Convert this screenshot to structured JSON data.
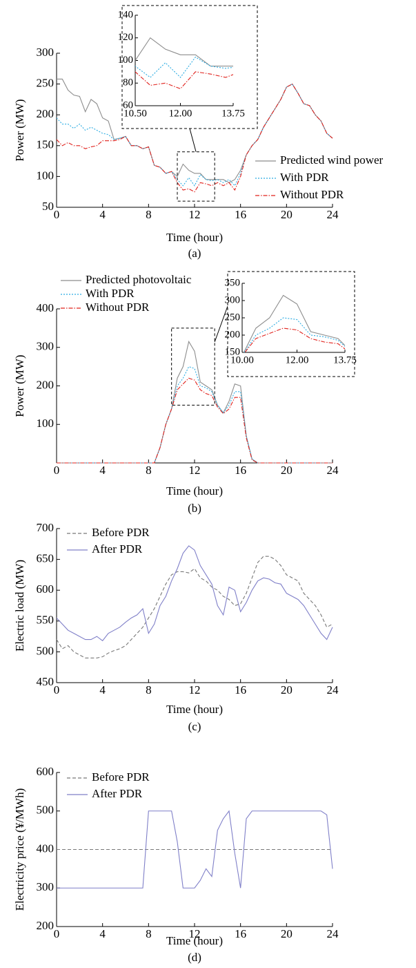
{
  "chart_data": [
    {
      "type": "line",
      "ylabel": "Power (MW)",
      "xlabel": "Time (hour)",
      "caption": "(a)",
      "x": [
        0,
        0.5,
        1,
        1.5,
        2,
        2.5,
        3,
        3.5,
        4,
        4.5,
        5,
        5.5,
        6,
        6.5,
        7,
        7.5,
        8,
        8.5,
        9,
        9.5,
        10,
        10.5,
        11,
        11.5,
        12,
        12.5,
        13,
        13.5,
        14,
        14.5,
        15,
        15.5,
        16,
        16.5,
        17,
        17.5,
        18,
        18.5,
        19,
        19.5,
        20,
        20.5,
        21,
        21.5,
        22,
        22.5,
        23,
        23.5,
        24
      ],
      "xlim": [
        0,
        24
      ],
      "xticks": [
        0,
        4,
        8,
        12,
        16,
        20,
        24
      ],
      "ylim": [
        50,
        300
      ],
      "yticks": [
        50,
        100,
        150,
        200,
        250,
        300
      ],
      "legend": "center right",
      "series": [
        {
          "name": "Predicted wind power",
          "color": "#8c8c8c",
          "linestyle": "solid",
          "values": [
            258,
            258,
            240,
            232,
            230,
            205,
            225,
            218,
            195,
            190,
            160,
            162,
            165,
            150,
            150,
            145,
            148,
            118,
            115,
            105,
            108,
            100,
            120,
            110,
            105,
            105,
            95,
            95,
            95,
            95,
            90,
            95,
            110,
            135,
            150,
            160,
            180,
            195,
            210,
            225,
            245,
            250,
            235,
            218,
            215,
            200,
            190,
            170,
            162
          ]
        },
        {
          "name": "With PDR",
          "color": "#29abe2",
          "linestyle": "dotted",
          "values": [
            195,
            185,
            185,
            178,
            185,
            175,
            180,
            175,
            170,
            168,
            160,
            162,
            165,
            150,
            150,
            145,
            148,
            118,
            115,
            105,
            108,
            95,
            85,
            98,
            85,
            103,
            95,
            93,
            95,
            90,
            95,
            85,
            105,
            135,
            150,
            160,
            180,
            195,
            210,
            225,
            245,
            250,
            235,
            218,
            215,
            200,
            190,
            170,
            162
          ]
        },
        {
          "name": "Without PDR",
          "color": "#e0201b",
          "linestyle": "dashdot",
          "values": [
            160,
            150,
            155,
            150,
            150,
            145,
            148,
            150,
            158,
            158,
            158,
            160,
            165,
            150,
            150,
            145,
            148,
            118,
            115,
            105,
            108,
            90,
            78,
            80,
            75,
            90,
            88,
            85,
            90,
            85,
            90,
            78,
            100,
            135,
            150,
            160,
            180,
            195,
            210,
            225,
            245,
            250,
            235,
            218,
            215,
            200,
            190,
            170,
            162
          ]
        }
      ],
      "inset": {
        "xlim": [
          10.5,
          13.75
        ],
        "ylim": [
          60,
          140
        ],
        "xticks": [
          {
            "value": 10.5,
            "label": "10.50"
          },
          {
            "value": 12,
            "label": "12.00"
          },
          {
            "value": 13.75,
            "label": "13.75"
          }
        ],
        "yticks": [
          60,
          80,
          100,
          120,
          140
        ]
      }
    },
    {
      "type": "line",
      "ylabel": "Power (MW)",
      "xlabel": "Time (hour)",
      "caption": "(b)",
      "x": [
        0,
        0.5,
        1,
        1.5,
        2,
        2.5,
        3,
        3.5,
        4,
        4.5,
        5,
        5.5,
        6,
        6.5,
        7,
        7.5,
        8,
        8.5,
        9,
        9.5,
        10,
        10.5,
        11,
        11.5,
        12,
        12.5,
        13,
        13.5,
        14,
        14.5,
        15,
        15.5,
        16,
        16.5,
        17,
        17.5,
        18,
        18.5,
        19,
        19.5,
        20,
        20.5,
        21,
        21.5,
        22,
        22.5,
        23,
        23.5,
        24
      ],
      "xlim": [
        0,
        24
      ],
      "xticks": [
        0,
        4,
        8,
        12,
        16,
        20,
        24
      ],
      "ylim": [
        0,
        400
      ],
      "yticks": [
        100,
        200,
        300,
        400
      ],
      "legend": "upper left",
      "series": [
        {
          "name": "Predicted photovoltaic",
          "color": "#8c8c8c",
          "linestyle": "solid",
          "values": [
            0,
            0,
            0,
            0,
            0,
            0,
            0,
            0,
            0,
            0,
            0,
            0,
            0,
            0,
            0,
            0,
            0,
            0,
            40,
            100,
            140,
            220,
            250,
            315,
            290,
            210,
            200,
            190,
            150,
            130,
            160,
            205,
            200,
            70,
            10,
            0,
            0,
            0,
            0,
            0,
            0,
            0,
            0,
            0,
            0,
            0,
            0,
            0,
            0
          ]
        },
        {
          "name": "With PDR",
          "color": "#29abe2",
          "linestyle": "dotted",
          "values": [
            0,
            0,
            0,
            0,
            0,
            0,
            0,
            0,
            0,
            0,
            0,
            0,
            0,
            0,
            0,
            0,
            0,
            0,
            40,
            100,
            140,
            200,
            220,
            250,
            245,
            200,
            195,
            185,
            150,
            130,
            150,
            185,
            185,
            70,
            10,
            0,
            0,
            0,
            0,
            0,
            0,
            0,
            0,
            0,
            0,
            0,
            0,
            0,
            0
          ]
        },
        {
          "name": "Without PDR",
          "color": "#e0201b",
          "linestyle": "dashdot",
          "values": [
            0,
            0,
            0,
            0,
            0,
            0,
            0,
            0,
            0,
            0,
            0,
            0,
            0,
            0,
            0,
            0,
            0,
            0,
            40,
            100,
            140,
            190,
            205,
            220,
            215,
            190,
            180,
            175,
            145,
            128,
            140,
            170,
            170,
            65,
            8,
            0,
            0,
            0,
            0,
            0,
            0,
            0,
            0,
            0,
            0,
            0,
            0,
            0,
            0
          ]
        }
      ],
      "inset": {
        "xlim": [
          10,
          13.75
        ],
        "ylim": [
          150,
          350
        ],
        "xticks": [
          {
            "value": 10,
            "label": "10.00"
          },
          {
            "value": 12,
            "label": "12.00"
          },
          {
            "value": 13.75,
            "label": "13.75"
          }
        ],
        "yticks": [
          150,
          200,
          250,
          300,
          350
        ]
      }
    },
    {
      "type": "line",
      "ylabel": "Electric load (MW)",
      "xlabel": "Time (hour)",
      "caption": "(c)",
      "x": [
        0,
        0.5,
        1,
        1.5,
        2,
        2.5,
        3,
        3.5,
        4,
        4.5,
        5,
        5.5,
        6,
        6.5,
        7,
        7.5,
        8,
        8.5,
        9,
        9.5,
        10,
        10.5,
        11,
        11.5,
        12,
        12.5,
        13,
        13.5,
        14,
        14.5,
        15,
        15.5,
        16,
        16.5,
        17,
        17.5,
        18,
        18.5,
        19,
        19.5,
        20,
        20.5,
        21,
        21.5,
        22,
        22.5,
        23,
        23.5,
        24
      ],
      "xlim": [
        0,
        24
      ],
      "xticks": [
        0,
        4,
        8,
        12,
        16,
        20,
        24
      ],
      "ylim": [
        450,
        700
      ],
      "yticks": [
        450,
        500,
        550,
        600,
        650,
        700
      ],
      "legend": "upper left",
      "series": [
        {
          "name": "Before PDR",
          "color": "#777777",
          "linestyle": "dashed",
          "values": [
            520,
            505,
            510,
            500,
            495,
            490,
            490,
            490,
            492,
            498,
            502,
            505,
            510,
            520,
            530,
            540,
            555,
            570,
            590,
            610,
            625,
            630,
            630,
            628,
            635,
            620,
            615,
            605,
            600,
            590,
            585,
            575,
            578,
            595,
            620,
            645,
            655,
            655,
            650,
            640,
            625,
            620,
            615,
            595,
            585,
            575,
            560,
            540,
            545
          ]
        },
        {
          "name": "After PDR",
          "color": "#7f7fc8",
          "linestyle": "solid",
          "values": [
            555,
            545,
            535,
            530,
            525,
            520,
            520,
            525,
            518,
            530,
            535,
            540,
            548,
            555,
            560,
            570,
            530,
            545,
            575,
            590,
            615,
            635,
            660,
            672,
            665,
            640,
            625,
            610,
            575,
            560,
            605,
            600,
            565,
            580,
            600,
            615,
            620,
            618,
            612,
            610,
            595,
            590,
            585,
            575,
            560,
            545,
            530,
            520,
            540
          ]
        }
      ]
    },
    {
      "type": "line",
      "ylabel": "Electricity price (¥/MWh)",
      "xlabel": "Time (hour)",
      "caption": "(d)",
      "x": [
        0,
        0.5,
        1,
        1.5,
        2,
        2.5,
        3,
        3.5,
        4,
        4.5,
        5,
        5.5,
        6,
        6.5,
        7,
        7.5,
        8,
        8.5,
        9,
        9.5,
        10,
        10.5,
        11,
        11.5,
        12,
        12.5,
        13,
        13.5,
        14,
        14.5,
        15,
        15.5,
        16,
        16.5,
        17,
        17.5,
        18,
        18.5,
        19,
        19.5,
        20,
        20.5,
        21,
        21.5,
        22,
        22.5,
        23,
        23.5,
        24
      ],
      "xlim": [
        0,
        24
      ],
      "xticks": [
        0,
        4,
        8,
        12,
        16,
        20,
        24
      ],
      "ylim": [
        200,
        600
      ],
      "yticks": [
        200,
        300,
        400,
        500,
        600
      ],
      "legend": "upper left",
      "series": [
        {
          "name": "Before PDR",
          "color": "#777777",
          "linestyle": "dashed",
          "values": [
            400,
            400,
            400,
            400,
            400,
            400,
            400,
            400,
            400,
            400,
            400,
            400,
            400,
            400,
            400,
            400,
            400,
            400,
            400,
            400,
            400,
            400,
            400,
            400,
            400,
            400,
            400,
            400,
            400,
            400,
            400,
            400,
            400,
            400,
            400,
            400,
            400,
            400,
            400,
            400,
            400,
            400,
            400,
            400,
            400,
            400,
            400,
            400,
            400
          ]
        },
        {
          "name": "After PDR",
          "color": "#7f7fc8",
          "linestyle": "solid",
          "values": [
            300,
            300,
            300,
            300,
            300,
            300,
            300,
            300,
            300,
            300,
            300,
            300,
            300,
            300,
            300,
            300,
            500,
            500,
            500,
            500,
            500,
            420,
            300,
            300,
            300,
            320,
            350,
            330,
            450,
            480,
            500,
            390,
            300,
            480,
            500,
            500,
            500,
            500,
            500,
            500,
            500,
            500,
            500,
            500,
            500,
            500,
            500,
            490,
            350
          ]
        }
      ]
    }
  ]
}
